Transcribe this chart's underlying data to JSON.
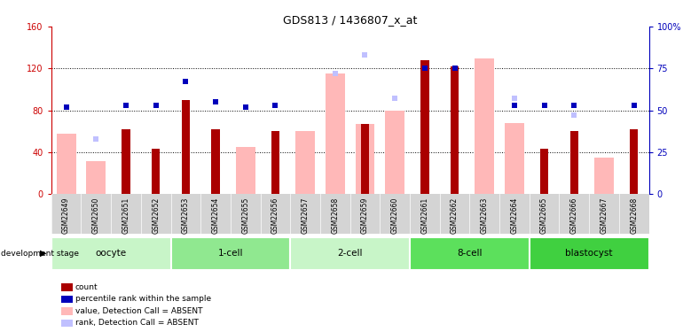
{
  "title": "GDS813 / 1436807_x_at",
  "samples": [
    "GSM22649",
    "GSM22650",
    "GSM22651",
    "GSM22652",
    "GSM22653",
    "GSM22654",
    "GSM22655",
    "GSM22656",
    "GSM22657",
    "GSM22658",
    "GSM22659",
    "GSM22660",
    "GSM22661",
    "GSM22662",
    "GSM22663",
    "GSM22664",
    "GSM22665",
    "GSM22666",
    "GSM22667",
    "GSM22668"
  ],
  "count": [
    0,
    0,
    62,
    43,
    90,
    62,
    0,
    60,
    0,
    0,
    67,
    0,
    128,
    122,
    0,
    0,
    43,
    60,
    0,
    62
  ],
  "pct_rank": [
    52,
    0,
    53,
    53,
    67,
    55,
    52,
    53,
    0,
    0,
    0,
    0,
    75,
    75,
    0,
    53,
    53,
    53,
    0,
    53
  ],
  "value_absent": [
    58,
    32,
    0,
    0,
    0,
    0,
    45,
    0,
    60,
    115,
    67,
    80,
    0,
    0,
    130,
    68,
    0,
    0,
    35,
    0
  ],
  "rank_absent": [
    0,
    33,
    0,
    0,
    0,
    0,
    0,
    0,
    0,
    72,
    83,
    57,
    0,
    0,
    0,
    57,
    0,
    47,
    0,
    0
  ],
  "groups": [
    {
      "label": "oocyte",
      "start": 0,
      "end": 4,
      "color": "#c8f5c8"
    },
    {
      "label": "1-cell",
      "start": 4,
      "end": 8,
      "color": "#90e890"
    },
    {
      "label": "2-cell",
      "start": 8,
      "end": 12,
      "color": "#c8f5c8"
    },
    {
      "label": "8-cell",
      "start": 12,
      "end": 16,
      "color": "#5ce05c"
    },
    {
      "label": "blastocyst",
      "start": 16,
      "end": 20,
      "color": "#40d040"
    }
  ],
  "ylim_left": [
    0,
    160
  ],
  "ylim_right": [
    0,
    100
  ],
  "yticks_left": [
    0,
    40,
    80,
    120,
    160
  ],
  "ytick_labels_left": [
    "0",
    "40",
    "80",
    "120",
    "160"
  ],
  "yticks_right": [
    0,
    25,
    50,
    75,
    100
  ],
  "ytick_labels_right": [
    "0",
    "25",
    "50",
    "75",
    "100%"
  ],
  "count_color": "#aa0000",
  "pct_rank_color": "#0000bb",
  "value_absent_color": "#ffb8b8",
  "rank_absent_color": "#c0c0ff",
  "left_axis_color": "#cc0000",
  "right_axis_color": "#0000bb",
  "legend_items": [
    {
      "label": "count",
      "color": "#aa0000"
    },
    {
      "label": "percentile rank within the sample",
      "color": "#0000bb"
    },
    {
      "label": "value, Detection Call = ABSENT",
      "color": "#ffb8b8"
    },
    {
      "label": "rank, Detection Call = ABSENT",
      "color": "#c0c0ff"
    }
  ]
}
